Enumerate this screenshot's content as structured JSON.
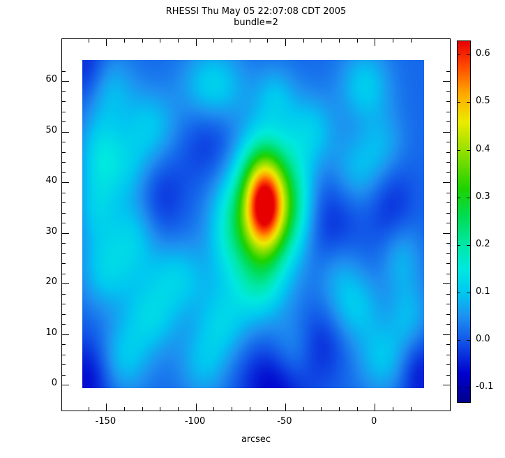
{
  "chart_data": {
    "type": "heatmap",
    "title": "RHESSI Thu May 05 22:07:08 CDT 2005",
    "subtitle": "bundle=2",
    "xlabel": "arcsec",
    "ylabel": "",
    "x_range": [
      -163,
      28
    ],
    "y_range": [
      -0.8,
      64
    ],
    "value_range": [
      -0.13,
      0.63
    ],
    "x_ticks": [
      -150,
      -100,
      -50,
      0
    ],
    "x_tick_labels": [
      "-150",
      "-100",
      "-50",
      "0"
    ],
    "x_minor_step": 10,
    "y_ticks": [
      0,
      10,
      20,
      30,
      40,
      50,
      60
    ],
    "y_tick_labels": [
      "0",
      "10",
      "20",
      "30",
      "40",
      "50",
      "60"
    ],
    "y_minor_step": 2,
    "colorbar": {
      "ticks": [
        -0.1,
        0.0,
        0.1,
        0.2,
        0.3,
        0.4,
        0.5,
        0.6
      ],
      "labels": [
        "-0.1",
        "0.0",
        "0.1",
        "0.2",
        "0.3",
        "0.4",
        "0.5",
        "0.6"
      ]
    },
    "colormap_stops": [
      [
        -0.13,
        "#00008C"
      ],
      [
        -0.07,
        "#0000CD"
      ],
      [
        0.0,
        "#1257E8"
      ],
      [
        0.05,
        "#1E90F0"
      ],
      [
        0.1,
        "#00C8F0"
      ],
      [
        0.15,
        "#00E8E0"
      ],
      [
        0.2,
        "#00E8A8"
      ],
      [
        0.26,
        "#00DC55"
      ],
      [
        0.32,
        "#1ED200"
      ],
      [
        0.4,
        "#96E000"
      ],
      [
        0.46,
        "#EBEB00"
      ],
      [
        0.52,
        "#FFA800"
      ],
      [
        0.58,
        "#FF4600"
      ],
      [
        0.63,
        "#E60000"
      ]
    ],
    "peak_location": {
      "x": -60,
      "y": 36,
      "value": 0.62
    },
    "background_level": 0.0,
    "field": {
      "base": 0.015,
      "blobs": [
        {
          "x": -61,
          "y": 35.5,
          "a": 0.5,
          "sx": 8.5,
          "sy": 7.0
        },
        {
          "x": -62,
          "y": 34.5,
          "a": 0.17,
          "sx": 16,
          "sy": 11
        },
        {
          "x": -44,
          "y": 36,
          "a": 0.1,
          "sx": 8,
          "sy": 7
        },
        {
          "x": -79,
          "y": 30,
          "a": 0.09,
          "sx": 9,
          "sy": 7
        },
        {
          "x": -148,
          "y": 58,
          "a": 0.07,
          "sx": 10,
          "sy": 5
        },
        {
          "x": -90,
          "y": 59,
          "a": 0.1,
          "sx": 12,
          "sy": 5
        },
        {
          "x": -55,
          "y": 57,
          "a": 0.06,
          "sx": 8,
          "sy": 4
        },
        {
          "x": -5,
          "y": 59,
          "a": 0.09,
          "sx": 10,
          "sy": 5
        },
        {
          "x": -125,
          "y": 51,
          "a": 0.08,
          "sx": 11,
          "sy": 5
        },
        {
          "x": -153,
          "y": 47,
          "a": 0.07,
          "sx": 8,
          "sy": 5
        },
        {
          "x": -35,
          "y": 50,
          "a": 0.08,
          "sx": 10,
          "sy": 5
        },
        {
          "x": 5,
          "y": 47,
          "a": 0.06,
          "sx": 9,
          "sy": 5
        },
        {
          "x": -140,
          "y": 43,
          "a": 0.08,
          "sx": 12,
          "sy": 5
        },
        {
          "x": -10,
          "y": 42,
          "a": 0.07,
          "sx": 10,
          "sy": 5
        },
        {
          "x": -155,
          "y": 35,
          "a": 0.08,
          "sx": 8,
          "sy": 6
        },
        {
          "x": -135,
          "y": 29,
          "a": 0.09,
          "sx": 10,
          "sy": 6
        },
        {
          "x": -150,
          "y": 22,
          "a": 0.08,
          "sx": 10,
          "sy": 5
        },
        {
          "x": -110,
          "y": 21,
          "a": 0.09,
          "sx": 12,
          "sy": 5
        },
        {
          "x": -65,
          "y": 19,
          "a": 0.08,
          "sx": 10,
          "sy": 5
        },
        {
          "x": -20,
          "y": 22,
          "a": 0.06,
          "sx": 9,
          "sy": 5
        },
        {
          "x": 15,
          "y": 25,
          "a": 0.07,
          "sx": 8,
          "sy": 5
        },
        {
          "x": -125,
          "y": 13,
          "a": 0.09,
          "sx": 11,
          "sy": 5
        },
        {
          "x": -85,
          "y": 12,
          "a": 0.08,
          "sx": 10,
          "sy": 5
        },
        {
          "x": -10,
          "y": 15,
          "a": 0.08,
          "sx": 10,
          "sy": 5
        },
        {
          "x": 20,
          "y": 13,
          "a": 0.07,
          "sx": 8,
          "sy": 5
        },
        {
          "x": -140,
          "y": 5,
          "a": 0.08,
          "sx": 10,
          "sy": 5
        },
        {
          "x": -95,
          "y": 4,
          "a": 0.07,
          "sx": 10,
          "sy": 5
        },
        {
          "x": -45,
          "y": 6,
          "a": 0.06,
          "sx": 9,
          "sy": 5
        },
        {
          "x": 5,
          "y": 5,
          "a": 0.08,
          "sx": 10,
          "sy": 5
        },
        {
          "x": -160,
          "y": 1,
          "a": -0.08,
          "sx": 10,
          "sy": 6
        },
        {
          "x": -55,
          "y": 0,
          "a": -0.09,
          "sx": 14,
          "sy": 6
        },
        {
          "x": 25,
          "y": 2,
          "a": -0.07,
          "sx": 8,
          "sy": 6
        },
        {
          "x": -160,
          "y": 62,
          "a": -0.06,
          "sx": 8,
          "sy": 5
        },
        {
          "x": -25,
          "y": 31,
          "a": -0.06,
          "sx": 12,
          "sy": 8
        },
        {
          "x": -120,
          "y": 37,
          "a": -0.05,
          "sx": 10,
          "sy": 6
        },
        {
          "x": 10,
          "y": 35,
          "a": -0.05,
          "sx": 9,
          "sy": 7
        },
        {
          "x": -90,
          "y": 47,
          "a": -0.05,
          "sx": 12,
          "sy": 6
        },
        {
          "x": -30,
          "y": 8,
          "a": -0.05,
          "sx": 10,
          "sy": 5
        }
      ]
    }
  }
}
